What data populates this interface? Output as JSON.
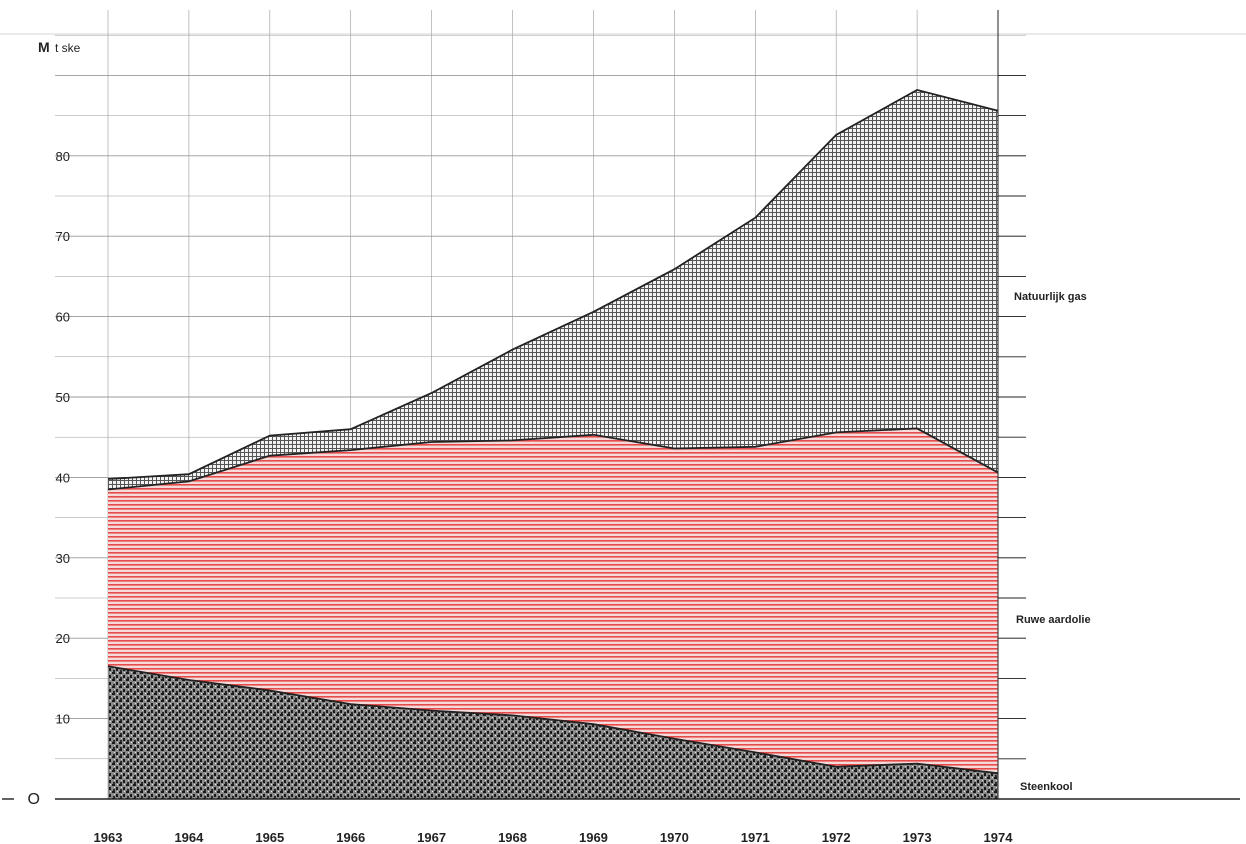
{
  "chart_data": {
    "type": "area",
    "stacked": true,
    "unit_label_bold": "M",
    "unit_label": "t ske",
    "x": [
      1963,
      1964,
      1965,
      1966,
      1967,
      1968,
      1969,
      1970,
      1971,
      1972,
      1973,
      1974
    ],
    "x_tick_labels": [
      "1963",
      "1964",
      "1965",
      "1966",
      "1967",
      "1968",
      "1969",
      "1970",
      "1971",
      "1972",
      "1973",
      "1974"
    ],
    "y_tick_labels": [
      "O",
      "10",
      "20",
      "30",
      "40",
      "50",
      "60",
      "70",
      "80"
    ],
    "ylim": [
      0,
      90
    ],
    "grid": true,
    "series": [
      {
        "name": "Steenkool",
        "values": [
          16.5,
          14.8,
          13.5,
          11.8,
          11.0,
          10.4,
          9.3,
          7.5,
          5.8,
          4.0,
          4.4,
          3.2
        ],
        "color": "#222222",
        "pattern": "speckle"
      },
      {
        "name": "Ruwe aardolie",
        "values": [
          22.0,
          24.7,
          29.2,
          31.6,
          33.4,
          34.2,
          36.0,
          36.1,
          38.0,
          41.6,
          41.7,
          37.4
        ],
        "color": "#e64b4b",
        "pattern": "horizontal-lines"
      },
      {
        "name": "Natuurlijk gas",
        "values": [
          1.3,
          0.9,
          2.5,
          2.6,
          6.1,
          11.3,
          15.3,
          22.3,
          28.5,
          37.0,
          42.1,
          45.0
        ],
        "color": "#333333",
        "pattern": "crosshatch"
      }
    ]
  }
}
